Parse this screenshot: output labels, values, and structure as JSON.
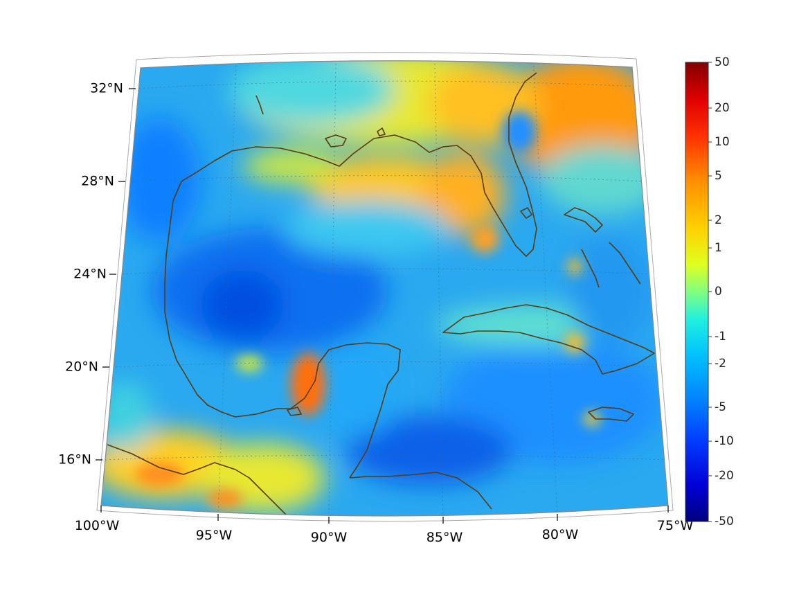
{
  "map": {
    "region": "Gulf of Mexico and Caribbean",
    "projection": "conic",
    "lon_range": [
      -100,
      -75
    ],
    "lat_range": [
      14,
      33
    ],
    "coastline_color": "#5a3a10",
    "graticule": "dotted",
    "lon_ticks": [
      "100°W",
      "95°W",
      "90°W",
      "85°W",
      "80°W",
      "75°W"
    ],
    "lat_ticks": [
      "32°N",
      "28°N",
      "24°N",
      "20°N",
      "16°N"
    ]
  },
  "colorbar": {
    "colormap": "jet",
    "scale": "nonlinear (symmetric)",
    "ticks": [
      "50",
      "20",
      "10",
      "5",
      "2",
      "1",
      "0",
      "-1",
      "-2",
      "-5",
      "-10",
      "-20",
      "-50"
    ],
    "range": [
      -50,
      50
    ]
  },
  "fields": [
    {
      "region": "north Florida / SE US interior",
      "level": 4
    },
    {
      "region": "northern Gulf shelf (Louisiana–Florida)",
      "level": 2
    },
    {
      "region": "western Yucatan coast",
      "level": 6
    },
    {
      "region": "central Gulf basin",
      "level": -7
    },
    {
      "region": "Caribbean Sea",
      "level": -4
    },
    {
      "region": "Mexico / Guatemala interior",
      "level": 3
    }
  ]
}
